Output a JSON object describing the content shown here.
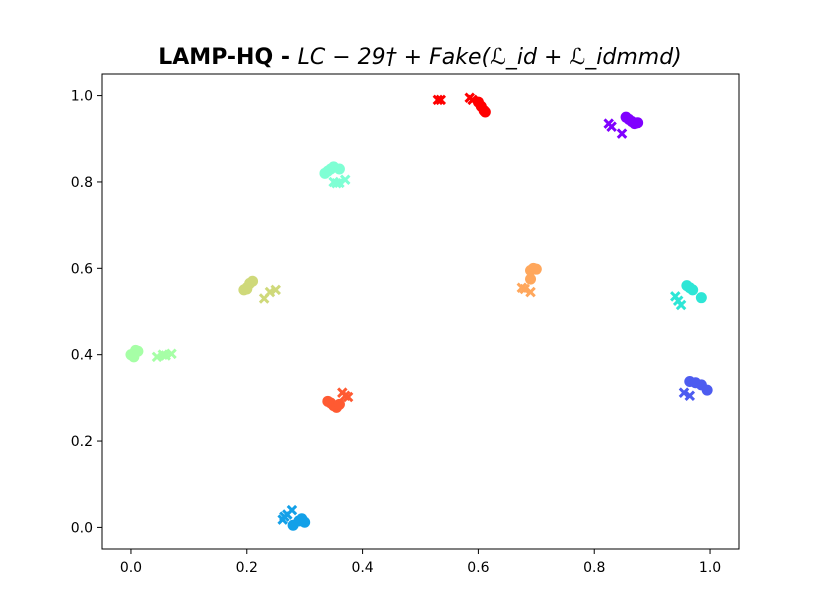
{
  "chart_data": {
    "type": "scatter",
    "title": {
      "bold": "LAMP-HQ - ",
      "math": "LC − 29† + Fake(ℒ_id + ℒ_idmmd)"
    },
    "xlabel": "",
    "ylabel": "",
    "xlim": [
      -0.05,
      1.05
    ],
    "ylim": [
      -0.05,
      1.05
    ],
    "xticks": [
      "0.0",
      "0.2",
      "0.4",
      "0.6",
      "0.8",
      "1.0"
    ],
    "yticks": [
      "0.0",
      "0.2",
      "0.4",
      "0.6",
      "0.8",
      "1.0"
    ],
    "grid": false,
    "clusters": [
      {
        "color": "#ff0000",
        "circles": [
          [
            0.6,
            0.985
          ],
          [
            0.605,
            0.975
          ],
          [
            0.61,
            0.965
          ],
          [
            0.612,
            0.962
          ]
        ],
        "crosses": [
          [
            0.53,
            0.99
          ],
          [
            0.535,
            0.99
          ],
          [
            0.585,
            0.995
          ],
          [
            0.59,
            0.99
          ]
        ]
      },
      {
        "color": "#8000ff",
        "circles": [
          [
            0.855,
            0.95
          ],
          [
            0.86,
            0.945
          ],
          [
            0.865,
            0.94
          ],
          [
            0.87,
            0.935
          ],
          [
            0.875,
            0.937
          ]
        ],
        "crosses": [
          [
            0.825,
            0.935
          ],
          [
            0.83,
            0.928
          ],
          [
            0.848,
            0.912
          ]
        ]
      },
      {
        "color": "#7fffd4",
        "circles": [
          [
            0.335,
            0.82
          ],
          [
            0.34,
            0.825
          ],
          [
            0.345,
            0.83
          ],
          [
            0.35,
            0.835
          ],
          [
            0.36,
            0.83
          ]
        ],
        "crosses": [
          [
            0.35,
            0.8
          ],
          [
            0.36,
            0.798
          ],
          [
            0.37,
            0.805
          ],
          [
            0.355,
            0.797
          ]
        ]
      },
      {
        "color": "#cfd97a",
        "circles": [
          [
            0.195,
            0.55
          ],
          [
            0.2,
            0.555
          ],
          [
            0.205,
            0.565
          ],
          [
            0.21,
            0.57
          ],
          [
            0.2,
            0.552
          ]
        ],
        "crosses": [
          [
            0.23,
            0.53
          ],
          [
            0.24,
            0.545
          ],
          [
            0.25,
            0.55
          ]
        ]
      },
      {
        "color": "#ffa75c",
        "circles": [
          [
            0.69,
            0.595
          ],
          [
            0.695,
            0.6
          ],
          [
            0.7,
            0.598
          ],
          [
            0.69,
            0.575
          ]
        ],
        "crosses": [
          [
            0.675,
            0.555
          ],
          [
            0.68,
            0.552
          ],
          [
            0.69,
            0.545
          ]
        ]
      },
      {
        "color": "#2ee6d6",
        "circles": [
          [
            0.96,
            0.56
          ],
          [
            0.965,
            0.555
          ],
          [
            0.97,
            0.55
          ],
          [
            0.985,
            0.532
          ]
        ],
        "crosses": [
          [
            0.94,
            0.535
          ],
          [
            0.945,
            0.525
          ],
          [
            0.95,
            0.515
          ]
        ]
      },
      {
        "color": "#a6ffa6",
        "circles": [
          [
            0.0,
            0.4
          ],
          [
            0.005,
            0.395
          ],
          [
            0.008,
            0.41
          ],
          [
            0.012,
            0.408
          ]
        ],
        "crosses": [
          [
            0.045,
            0.395
          ],
          [
            0.055,
            0.4
          ],
          [
            0.07,
            0.402
          ],
          [
            0.06,
            0.398
          ]
        ]
      },
      {
        "color": "#4d5cf0",
        "circles": [
          [
            0.965,
            0.338
          ],
          [
            0.975,
            0.335
          ],
          [
            0.985,
            0.33
          ],
          [
            0.995,
            0.318
          ]
        ],
        "crosses": [
          [
            0.955,
            0.312
          ],
          [
            0.965,
            0.305
          ]
        ]
      },
      {
        "color": "#ff5a32",
        "circles": [
          [
            0.34,
            0.292
          ],
          [
            0.345,
            0.288
          ],
          [
            0.35,
            0.282
          ],
          [
            0.355,
            0.278
          ],
          [
            0.36,
            0.285
          ]
        ],
        "crosses": [
          [
            0.365,
            0.312
          ],
          [
            0.37,
            0.305
          ],
          [
            0.375,
            0.302
          ]
        ]
      },
      {
        "color": "#13a0e8",
        "circles": [
          [
            0.28,
            0.005
          ],
          [
            0.29,
            0.015
          ],
          [
            0.295,
            0.02
          ],
          [
            0.3,
            0.012
          ]
        ],
        "crosses": [
          [
            0.262,
            0.018
          ],
          [
            0.27,
            0.03
          ],
          [
            0.278,
            0.04
          ],
          [
            0.265,
            0.025
          ]
        ]
      }
    ]
  }
}
